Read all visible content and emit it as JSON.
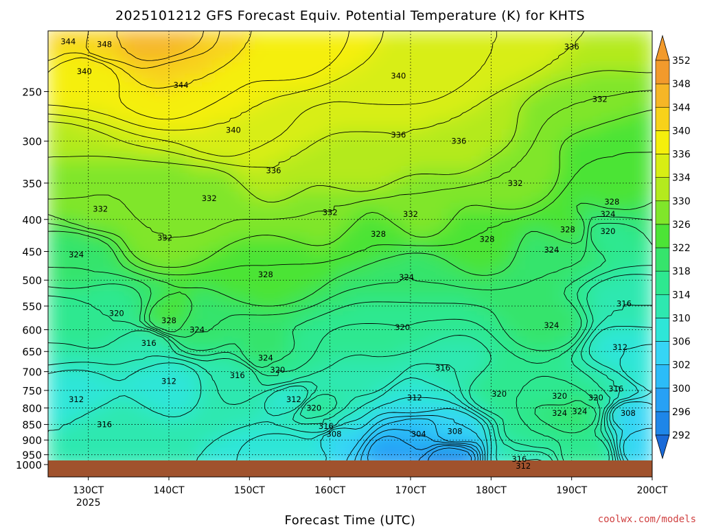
{
  "chart_data": {
    "type": "heatmap",
    "title": "2025101212 GFS Forecast Equiv. Potential Temperature (K) for KHTS",
    "xlabel": "Forecast Time (UTC)",
    "ylabel": "",
    "x_ticks": [
      "130CT",
      "140CT",
      "150CT",
      "160CT",
      "170CT",
      "180CT",
      "190CT",
      "200CT"
    ],
    "x_tick_sublabel": "2025",
    "x_range_days": [
      12.5,
      20.0
    ],
    "y_ticks": [
      250,
      300,
      350,
      400,
      450,
      500,
      550,
      600,
      650,
      700,
      750,
      800,
      850,
      900,
      950,
      1000
    ],
    "y_range_hpa": [
      200,
      1000
    ],
    "y_scale": "log-pressure",
    "grid": true,
    "colorbar": {
      "position": "right",
      "levels": [
        292,
        296,
        300,
        302,
        306,
        310,
        314,
        318,
        322,
        326,
        330,
        334,
        336,
        340,
        344,
        348,
        352
      ],
      "colors": [
        "#1a6ad8",
        "#1e86e8",
        "#27a1f5",
        "#2cbcf8",
        "#36d5f5",
        "#2ee6d8",
        "#2ee8b0",
        "#2ee890",
        "#36e46c",
        "#4ce436",
        "#80e62a",
        "#b4ea1e",
        "#d8ee14",
        "#f5ef0c",
        "#f8d21a",
        "#f6b626",
        "#f29a2c"
      ]
    },
    "surface_color": "#a0522d",
    "contour_labels": [
      {
        "t": 12.75,
        "p": 208,
        "v": "344"
      },
      {
        "t": 13.2,
        "p": 210,
        "v": "348"
      },
      {
        "t": 12.95,
        "p": 232,
        "v": "340"
      },
      {
        "t": 14.15,
        "p": 244,
        "v": "344"
      },
      {
        "t": 14.8,
        "p": 288,
        "v": "340"
      },
      {
        "t": 15.3,
        "p": 334,
        "v": "336"
      },
      {
        "t": 14.5,
        "p": 370,
        "v": "332"
      },
      {
        "t": 13.15,
        "p": 385,
        "v": "332"
      },
      {
        "t": 13.95,
        "p": 428,
        "v": "332"
      },
      {
        "t": 12.85,
        "p": 455,
        "v": "324"
      },
      {
        "t": 16.0,
        "p": 390,
        "v": "332"
      },
      {
        "t": 15.2,
        "p": 490,
        "v": "328"
      },
      {
        "t": 16.6,
        "p": 422,
        "v": "328"
      },
      {
        "t": 17.0,
        "p": 392,
        "v": "332"
      },
      {
        "t": 16.95,
        "p": 495,
        "v": "324"
      },
      {
        "t": 16.85,
        "p": 293,
        "v": "336"
      },
      {
        "t": 17.6,
        "p": 300,
        "v": "336"
      },
      {
        "t": 16.85,
        "p": 236,
        "v": "340"
      },
      {
        "t": 19.0,
        "p": 212,
        "v": "336"
      },
      {
        "t": 19.35,
        "p": 257,
        "v": "332"
      },
      {
        "t": 18.3,
        "p": 350,
        "v": "332"
      },
      {
        "t": 17.95,
        "p": 430,
        "v": "328"
      },
      {
        "t": 18.95,
        "p": 415,
        "v": "328"
      },
      {
        "t": 18.75,
        "p": 447,
        "v": "324"
      },
      {
        "t": 19.5,
        "p": 375,
        "v": "328"
      },
      {
        "t": 19.45,
        "p": 392,
        "v": "324"
      },
      {
        "t": 19.45,
        "p": 418,
        "v": "320"
      },
      {
        "t": 13.35,
        "p": 565,
        "v": "320"
      },
      {
        "t": 13.75,
        "p": 630,
        "v": "316"
      },
      {
        "t": 14.0,
        "p": 580,
        "v": "328"
      },
      {
        "t": 14.35,
        "p": 600,
        "v": "324"
      },
      {
        "t": 15.2,
        "p": 665,
        "v": "324"
      },
      {
        "t": 14.85,
        "p": 710,
        "v": "316"
      },
      {
        "t": 15.35,
        "p": 695,
        "v": "320"
      },
      {
        "t": 14.0,
        "p": 725,
        "v": "312"
      },
      {
        "t": 12.85,
        "p": 775,
        "v": "312"
      },
      {
        "t": 13.2,
        "p": 850,
        "v": "316"
      },
      {
        "t": 15.55,
        "p": 775,
        "v": "312"
      },
      {
        "t": 15.8,
        "p": 800,
        "v": "320"
      },
      {
        "t": 15.95,
        "p": 855,
        "v": "316"
      },
      {
        "t": 16.05,
        "p": 880,
        "v": "308"
      },
      {
        "t": 16.9,
        "p": 595,
        "v": "320"
      },
      {
        "t": 17.4,
        "p": 690,
        "v": "316"
      },
      {
        "t": 17.05,
        "p": 770,
        "v": "312"
      },
      {
        "t": 17.1,
        "p": 880,
        "v": "304"
      },
      {
        "t": 17.55,
        "p": 872,
        "v": "308"
      },
      {
        "t": 18.1,
        "p": 760,
        "v": "320"
      },
      {
        "t": 18.75,
        "p": 590,
        "v": "324"
      },
      {
        "t": 18.85,
        "p": 765,
        "v": "320"
      },
      {
        "t": 18.85,
        "p": 815,
        "v": "324"
      },
      {
        "t": 19.1,
        "p": 810,
        "v": "324"
      },
      {
        "t": 19.3,
        "p": 770,
        "v": "320"
      },
      {
        "t": 19.65,
        "p": 545,
        "v": "316"
      },
      {
        "t": 19.6,
        "p": 640,
        "v": "312"
      },
      {
        "t": 19.55,
        "p": 745,
        "v": "316"
      },
      {
        "t": 19.7,
        "p": 815,
        "v": "308"
      },
      {
        "t": 18.35,
        "p": 965,
        "v": "316"
      },
      {
        "t": 18.4,
        "p": 990,
        "v": "312"
      }
    ]
  },
  "credit": "coolwx.com/models"
}
